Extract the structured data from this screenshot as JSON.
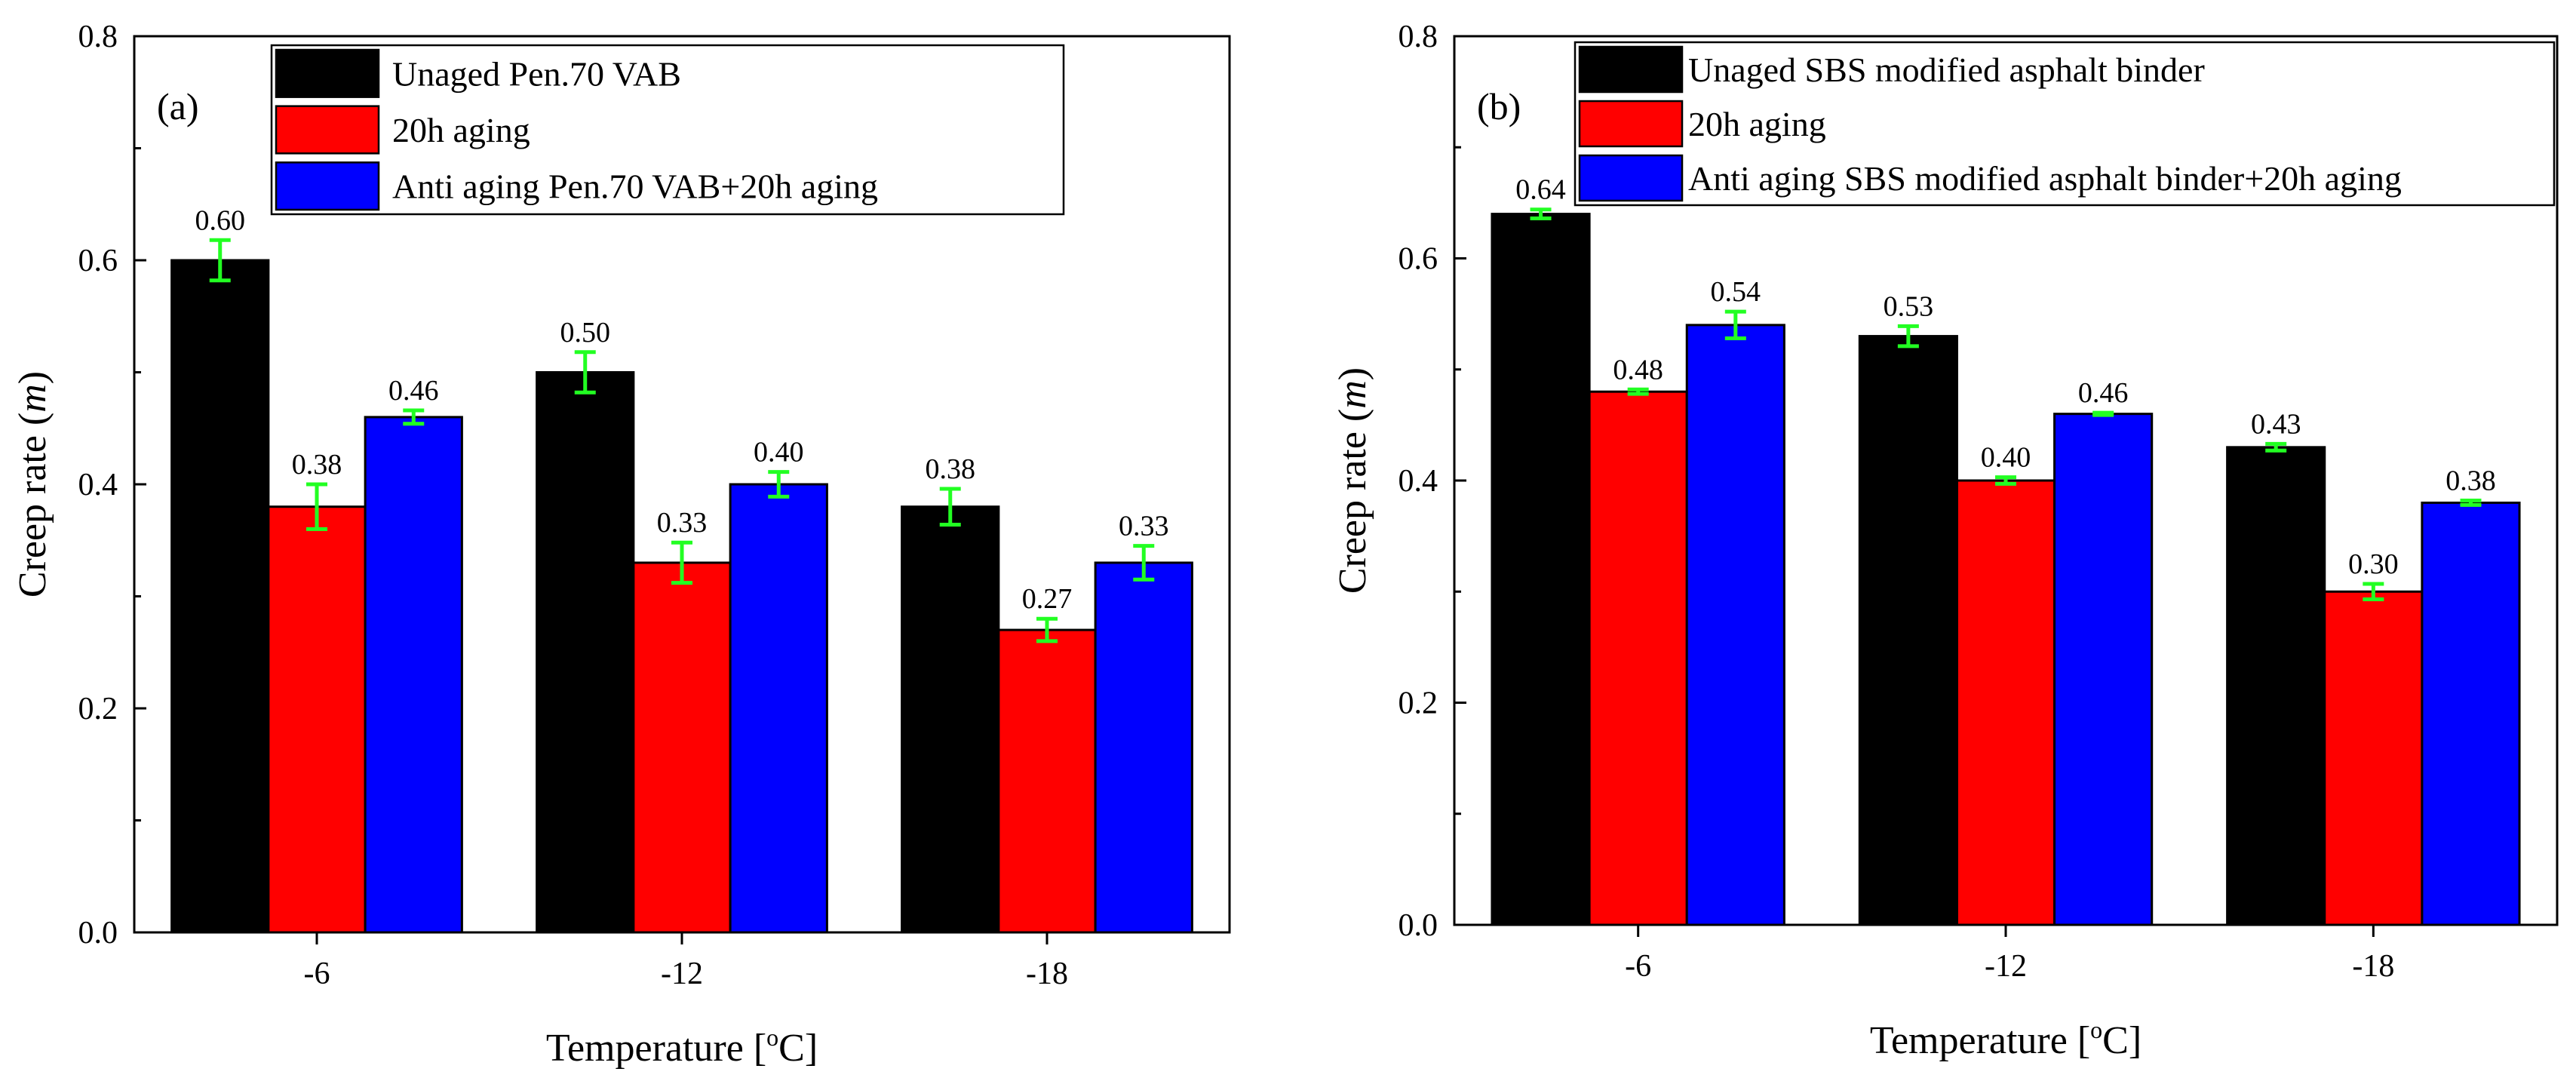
{
  "chart_data": [
    {
      "type": "bar",
      "panel_label": "(a)",
      "categories": [
        "-6",
        "-12",
        "-18"
      ],
      "series": [
        {
          "name": "Unaged Pen.70 VAB",
          "color": "#000000",
          "values": [
            0.6,
            0.5,
            0.38
          ],
          "errors": [
            0.018,
            0.018,
            0.016
          ],
          "labels": [
            "0.60",
            "0.50",
            "0.38"
          ]
        },
        {
          "name": "20h aging",
          "color": "#ff0000",
          "values": [
            0.38,
            0.33,
            0.27
          ],
          "errors": [
            0.02,
            0.018,
            0.01
          ],
          "labels": [
            "0.38",
            "0.33",
            "0.27"
          ]
        },
        {
          "name": "Anti aging Pen.70 VAB+20h aging",
          "color": "#0000ff",
          "values": [
            0.46,
            0.4,
            0.33
          ],
          "errors": [
            0.006,
            0.011,
            0.015
          ],
          "labels": [
            "0.46",
            "0.40",
            "0.33"
          ]
        }
      ],
      "xlabel_main": "Temperature [",
      "xlabel_sup": "o",
      "xlabel_end": "C]",
      "ylabel_main": "Creep rate (",
      "ylabel_var": "m",
      "ylabel_end": ")",
      "ylim": [
        0,
        0.8
      ],
      "yticks": [
        "0.0",
        "0.2",
        "0.4",
        "0.6",
        "0.8"
      ],
      "errorbar_color": "#22ff22",
      "legend_position": "top-right"
    },
    {
      "type": "bar",
      "panel_label": "(b)",
      "categories": [
        "-6",
        "-12",
        "-18"
      ],
      "series": [
        {
          "name": "Unaged SBS modified asphalt binder",
          "color": "#000000",
          "values": [
            0.64,
            0.53,
            0.43
          ],
          "errors": [
            0.004,
            0.009,
            0.003
          ],
          "labels": [
            "0.64",
            "0.53",
            "0.43"
          ]
        },
        {
          "name": "20h aging",
          "color": "#ff0000",
          "values": [
            0.48,
            0.4,
            0.3
          ],
          "errors": [
            0.002,
            0.003,
            0.007
          ],
          "labels": [
            "0.48",
            "0.40",
            "0.30"
          ]
        },
        {
          "name": "Anti aging SBS modified asphalt binder+20h aging",
          "color": "#0000ff",
          "values": [
            0.54,
            0.46,
            0.38
          ],
          "errors": [
            0.012,
            0.001,
            0.002
          ],
          "labels": [
            "0.54",
            "0.46",
            "0.38"
          ]
        }
      ],
      "xlabel_main": "Temperature [",
      "xlabel_sup": "o",
      "xlabel_end": "C]",
      "ylabel_main": "Creep rate (",
      "ylabel_var": "m",
      "ylabel_end": ")",
      "ylim": [
        0,
        0.8
      ],
      "yticks": [
        "0.0",
        "0.2",
        "0.4",
        "0.6",
        "0.8"
      ],
      "errorbar_color": "#22ff22",
      "legend_position": "top-right"
    }
  ]
}
